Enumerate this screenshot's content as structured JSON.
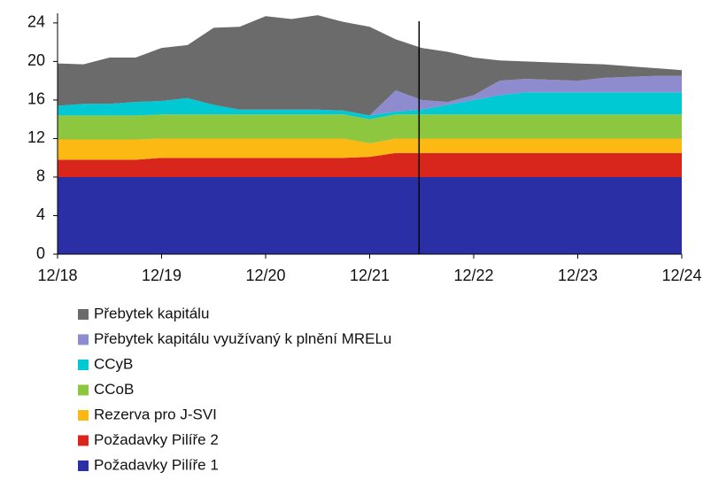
{
  "chart_data": {
    "type": "stacked-area",
    "categories": [
      "12/18",
      null,
      null,
      null,
      "12/19",
      null,
      null,
      null,
      "12/20",
      null,
      null,
      null,
      "12/21",
      null,
      null,
      null,
      "12/22",
      null,
      null,
      null,
      "12/23",
      null,
      null,
      null,
      "12/24"
    ],
    "ylim": [
      0,
      25
    ],
    "yticks": [
      0,
      4,
      8,
      12,
      16,
      20,
      24
    ],
    "divider_at": 13.9,
    "series": [
      {
        "name": "Požadavky Pilíře 1",
        "color": "#2b2fa6",
        "values": [
          8,
          8,
          8,
          8,
          8,
          8,
          8,
          8,
          8,
          8,
          8,
          8,
          8,
          8,
          8,
          8,
          8,
          8,
          8,
          8,
          8,
          8,
          8,
          8,
          8
        ]
      },
      {
        "name": "Požadavky Pilíře 2",
        "color": "#d8261d",
        "values": [
          1.8,
          1.8,
          1.8,
          1.8,
          2.0,
          2.0,
          2.0,
          2.0,
          2.0,
          2.0,
          2.0,
          2.0,
          2.1,
          2.5,
          2.5,
          2.5,
          2.5,
          2.5,
          2.5,
          2.5,
          2.5,
          2.5,
          2.5,
          2.5,
          2.5
        ]
      },
      {
        "name": "Rezerva pro J-SVI",
        "color": "#fdb913",
        "values": [
          2.1,
          2.1,
          2.1,
          2.1,
          2.0,
          2.0,
          2.0,
          2.0,
          2.0,
          2.0,
          2.0,
          2.0,
          1.4,
          1.5,
          1.5,
          1.5,
          1.5,
          1.5,
          1.5,
          1.5,
          1.5,
          1.5,
          1.5,
          1.5,
          1.5
        ]
      },
      {
        "name": "CCoB",
        "color": "#8dc63f",
        "values": [
          2.5,
          2.5,
          2.5,
          2.5,
          2.5,
          2.5,
          2.5,
          2.5,
          2.5,
          2.5,
          2.5,
          2.5,
          2.5,
          2.5,
          2.5,
          2.5,
          2.5,
          2.5,
          2.5,
          2.5,
          2.5,
          2.5,
          2.5,
          2.5,
          2.5
        ]
      },
      {
        "name": "CCyB",
        "color": "#00c9d3",
        "values": [
          1.0,
          1.2,
          1.2,
          1.4,
          1.4,
          1.7,
          1.0,
          0.5,
          0.5,
          0.5,
          0.5,
          0.4,
          0.4,
          0.3,
          0.5,
          1.0,
          1.5,
          2.0,
          2.3,
          2.3,
          2.3,
          2.3,
          2.3,
          2.3,
          2.3
        ]
      },
      {
        "name": "Přebytek kapitálu využívaný k plnění MRELu",
        "color": "#8e8bcf",
        "values": [
          0,
          0,
          0,
          0,
          0,
          0,
          0,
          0,
          0,
          0,
          0,
          0,
          0,
          2.2,
          1.0,
          0.3,
          0.5,
          1.5,
          1.4,
          1.3,
          1.2,
          1.5,
          1.6,
          1.7,
          1.7
        ]
      },
      {
        "name": "Přebytek kapitálu",
        "color": "#6b6b6b",
        "values": [
          4.4,
          4.1,
          4.8,
          4.6,
          5.5,
          5.5,
          8.0,
          8.6,
          9.7,
          9.4,
          9.8,
          9.2,
          9.2,
          5.3,
          5.4,
          5.2,
          3.9,
          2.1,
          1.8,
          1.8,
          1.8,
          1.4,
          1.1,
          0.8,
          0.6
        ]
      }
    ]
  }
}
